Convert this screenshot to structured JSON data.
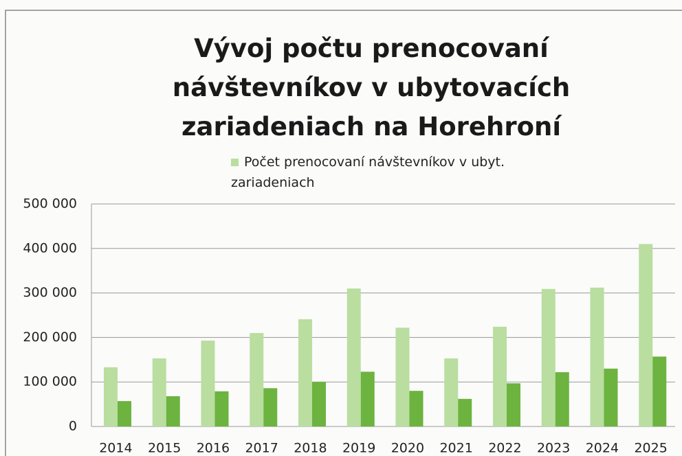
{
  "chart_data": {
    "type": "bar",
    "title": "Vývoj počtu prenocovaní návštevníkov v ubytovacích zariadeniach na Horehroní",
    "categories": [
      "2014",
      "2015",
      "2016",
      "2017",
      "2018",
      "2019",
      "2020",
      "2021",
      "2022",
      "2023",
      "2024",
      "2025"
    ],
    "series": [
      {
        "name": "Počet prenocovaní návštevníkov v ubyt. zariadeniach",
        "color": "#b9dea0",
        "values": [
          133000,
          153000,
          193000,
          210000,
          241000,
          310000,
          222000,
          153000,
          224000,
          309000,
          312000,
          410000
        ]
      },
      {
        "color": "#6db33f",
        "values": [
          57000,
          68000,
          79000,
          86000,
          100000,
          123000,
          80000,
          62000,
          97000,
          122000,
          130000,
          157000
        ]
      }
    ],
    "ylim": [
      0,
      500000
    ],
    "yticks": [
      0,
      {
        "value": 100000,
        "label": "100 000"
      },
      {
        "value": 200000,
        "label": "200 000"
      },
      {
        "value": 300000,
        "label": "300 000"
      },
      {
        "value": 400000,
        "label": "400 000"
      },
      {
        "value": 500000,
        "label": "500 000"
      }
    ],
    "grid": true,
    "legend": "top"
  }
}
